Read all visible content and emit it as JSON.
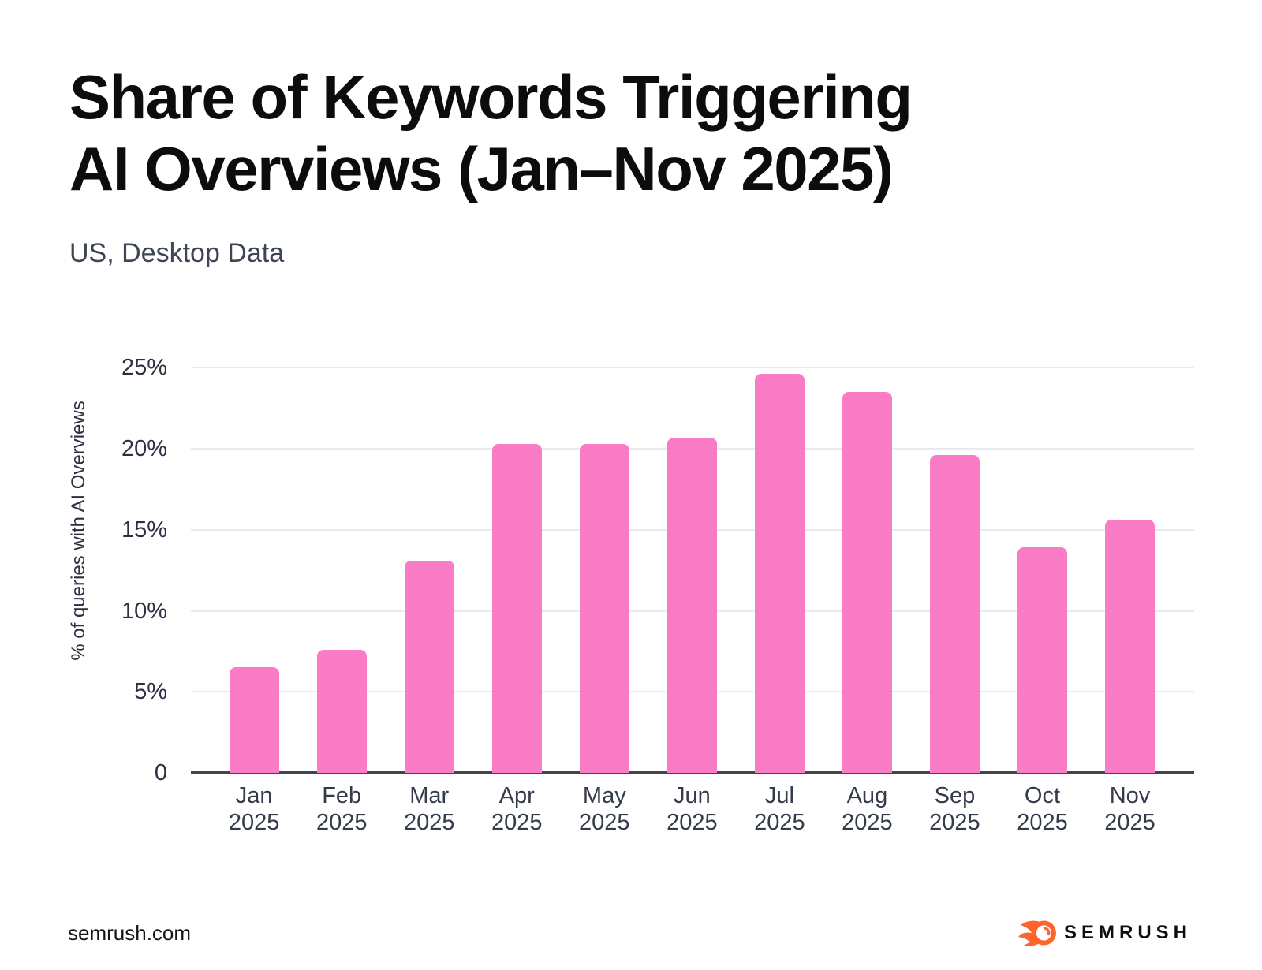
{
  "title": {
    "line1": "Share of Keywords Triggering",
    "line2": "AI Overviews (Jan–Nov 2025)"
  },
  "subtitle": "US, Desktop Data",
  "footer": {
    "site": "semrush.com",
    "logo_text": "SEMRUSH",
    "logo_icon": "semrush-flame-ball-icon",
    "logo_orange": "#ff642d"
  },
  "chart_data": {
    "type": "bar",
    "title": "Share of Keywords Triggering AI Overviews (Jan–Nov 2025)",
    "subtitle": "US, Desktop Data",
    "xlabel": "",
    "ylabel": "% of queries with AI Overviews",
    "categories": [
      "Jan 2025",
      "Feb 2025",
      "Mar 2025",
      "Apr 2025",
      "May 2025",
      "Jun 2025",
      "Jul 2025",
      "Aug 2025",
      "Sep 2025",
      "Oct 2025",
      "Nov 2025"
    ],
    "values": [
      6.5,
      7.6,
      13.1,
      20.3,
      20.3,
      20.7,
      24.6,
      23.5,
      19.6,
      13.9,
      15.6
    ],
    "y_ticks": [
      {
        "value": 0,
        "label": "0"
      },
      {
        "value": 5,
        "label": "5%"
      },
      {
        "value": 10,
        "label": "10%"
      },
      {
        "value": 15,
        "label": "15%"
      },
      {
        "value": 20,
        "label": "20%"
      },
      {
        "value": 25,
        "label": "25%"
      }
    ],
    "ylim": [
      0,
      26
    ],
    "grid": "horizontal",
    "legend": "none",
    "bar_color": "#fa7cc6",
    "gridline_color": "#e7eaf3",
    "axis_line_color": "#43464e"
  }
}
